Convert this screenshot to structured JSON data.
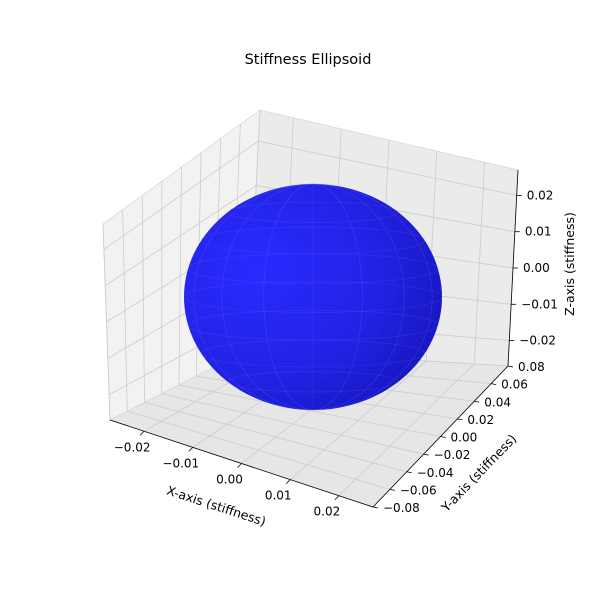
{
  "chart_data": {
    "type": "surface3d",
    "title": "Stiffness Ellipsoid",
    "xlabel": "X-axis (stiffness)",
    "ylabel": "Y-axis (stiffness)",
    "zlabel": "Z-axis (stiffness)",
    "xlim": [
      -0.027,
      0.027
    ],
    "ylim": [
      -0.08,
      0.08
    ],
    "zlim": [
      -0.027,
      0.027
    ],
    "xticks": [
      "−0.02",
      "−0.01",
      "0.00",
      "0.01",
      "0.02"
    ],
    "yticks": [
      "−0.08",
      "−0.06",
      "−0.04",
      "−0.02",
      "0.00",
      "0.02",
      "0.04",
      "0.06",
      "0.08"
    ],
    "zticks": [
      "−0.02",
      "−0.01",
      "0.00",
      "0.01",
      "0.02"
    ],
    "surface": {
      "shape": "ellipsoid",
      "center": [
        0,
        0,
        0
      ],
      "semi_axes": [
        0.025,
        0.025,
        0.025
      ],
      "color": "#2020ff"
    },
    "grid": true,
    "pane_color": "#f2f2f2"
  }
}
